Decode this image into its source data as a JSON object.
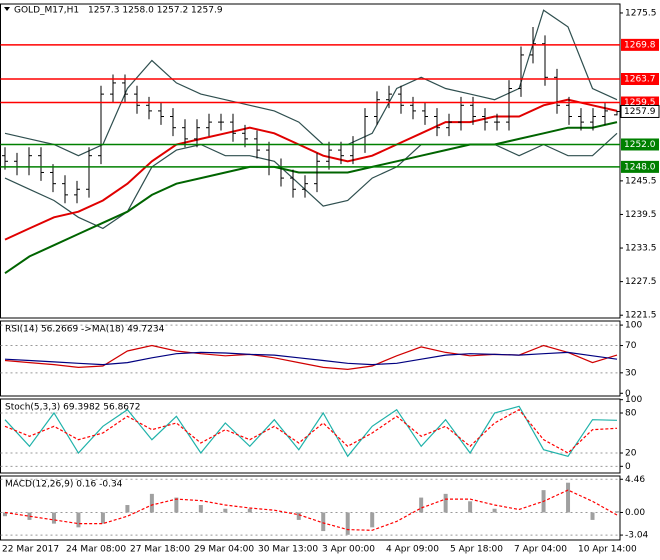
{
  "chart_data": [
    {
      "type": "ohlc",
      "title": "GOLD_M17,H1",
      "quote": "1257.3 1258.0 1257.2 1257.9",
      "color": "#000000",
      "open": [
        1250,
        1249,
        1248,
        1250,
        1247,
        1245,
        1243,
        1244,
        1250,
        1261,
        1263,
        1261,
        1259,
        1258,
        1257,
        1255,
        1253,
        1255,
        1256,
        1256,
        1254,
        1253,
        1251,
        1248,
        1246,
        1244,
        1245,
        1249,
        1251,
        1250,
        1252,
        1257,
        1260,
        1261,
        1259,
        1258,
        1257,
        1255,
        1256,
        1259,
        1257,
        1256,
        1256,
        1262,
        1268,
        1270,
        1264,
        1259,
        1257,
        1256,
        1257,
        1257.3
      ],
      "high": [
        1251.5,
        1250.5,
        1251.5,
        1251.5,
        1248.5,
        1246.5,
        1245.5,
        1251.5,
        1262.5,
        1264.5,
        1264.5,
        1262.5,
        1260.5,
        1259.5,
        1258.5,
        1256.5,
        1256.5,
        1257.5,
        1257.5,
        1257.5,
        1255.5,
        1254.5,
        1252.5,
        1249.5,
        1247.5,
        1246.5,
        1250.5,
        1252.5,
        1252.5,
        1253.5,
        1258.5,
        1261.5,
        1262.5,
        1262.5,
        1260.5,
        1259.5,
        1258.5,
        1257.5,
        1260.5,
        1260.5,
        1258.5,
        1257.5,
        1263.5,
        1269.5,
        1273,
        1271.5,
        1265.5,
        1260.5,
        1258.5,
        1258.5,
        1259.5,
        1258.0
      ],
      "low": [
        1247.5,
        1246.5,
        1246.5,
        1245.5,
        1243.5,
        1241.5,
        1241.5,
        1242.5,
        1248.5,
        1259.5,
        1259.5,
        1257.5,
        1256.5,
        1255.5,
        1253.5,
        1251.5,
        1251.5,
        1253.5,
        1254.5,
        1252.5,
        1251.5,
        1249.5,
        1246.5,
        1244.5,
        1242.5,
        1242.5,
        1243.5,
        1247.5,
        1248.5,
        1248.5,
        1250.5,
        1255.5,
        1258.5,
        1257.5,
        1256.5,
        1255.5,
        1253.5,
        1253.5,
        1254.5,
        1255.5,
        1254.5,
        1254.5,
        1254.5,
        1260.5,
        1266.5,
        1262.5,
        1257.5,
        1255.5,
        1254.5,
        1254.5,
        1255.5,
        1257.2
      ],
      "close": [
        1249,
        1248,
        1250,
        1247,
        1245,
        1243,
        1244,
        1250,
        1261,
        1263,
        1261,
        1259,
        1258,
        1257,
        1255,
        1253,
        1255,
        1256,
        1256,
        1254,
        1253,
        1251,
        1248,
        1246,
        1244,
        1245,
        1249,
        1251,
        1250,
        1252,
        1257,
        1260,
        1261,
        1259,
        1258,
        1257,
        1255,
        1256,
        1259,
        1257,
        1256,
        1256,
        1262,
        1268,
        1270,
        1264,
        1259,
        1257,
        1256,
        1257,
        1258,
        1257.9
      ],
      "series": [
        {
          "color": "#2f4f4f",
          "values": [
            1254,
            1253,
            1252,
            1250,
            1252,
            1262,
            1267,
            1263,
            1261,
            1260,
            1259,
            1258,
            1256,
            1252,
            1252,
            1254,
            1262,
            1264,
            1262,
            1261,
            1260,
            1262,
            1276,
            1273,
            1262,
            1260
          ]
        },
        {
          "color": "#2f4f4f",
          "values": [
            1246,
            1244,
            1242,
            1239,
            1237,
            1240,
            1248,
            1251,
            1252,
            1250,
            1250,
            1249,
            1245,
            1241,
            1242,
            1246,
            1248,
            1252,
            1252,
            1252,
            1252,
            1250,
            1252,
            1250,
            1250,
            1254
          ]
        },
        {
          "color": "#e00000",
          "values": [
            1235,
            1237,
            1239,
            1240,
            1242,
            1245,
            1249,
            1252,
            1253,
            1254,
            1255,
            1254,
            1252,
            1250,
            1249,
            1250,
            1252,
            1254,
            1256,
            1256,
            1257,
            1257,
            1259,
            1260,
            1259,
            1258
          ]
        },
        {
          "color": "#006400",
          "values": [
            1229,
            1232,
            1234,
            1236,
            1238,
            1240,
            1243,
            1245,
            1246,
            1247,
            1248,
            1248,
            1247,
            1247,
            1247,
            1248,
            1249,
            1250,
            1251,
            1252,
            1252,
            1253,
            1254,
            1255,
            1255,
            1256
          ]
        }
      ],
      "levels": [
        {
          "value": 1269.8,
          "label": "1269.8",
          "color": "#ff0000"
        },
        {
          "value": 1263.7,
          "label": "1263.7",
          "color": "#ff0000"
        },
        {
          "value": 1259.5,
          "label": "1259.5",
          "color": "#ff0000"
        },
        {
          "value": 1252,
          "label": "1252.0",
          "color": "#008000"
        },
        {
          "value": 1248,
          "label": "1248.0",
          "color": "#008000"
        }
      ],
      "current": 1257.9,
      "ylim": [
        1221,
        1277.1
      ],
      "yticks": [
        1275.5,
        1245.5,
        1239.5,
        1233.5,
        1227.5,
        1221.5
      ],
      "x_labels": [
        "22 Mar 2017",
        "24 Mar 08:00",
        "27 Mar 18:00",
        "29 Mar 04:00",
        "30 Mar 13:00",
        "3 Apr 00:00",
        "4 Apr 09:00",
        "5 Apr 18:00",
        "7 Apr 04:00",
        "10 Apr 14:00"
      ]
    },
    {
      "type": "line",
      "title": "RSI(14) 56.2669 ->MA(18) 49.7234",
      "ylim": [
        -4,
        106
      ],
      "yticks": [
        100,
        70,
        30,
        0
      ],
      "series": [
        {
          "color": "#d00000",
          "values": [
            48,
            45,
            42,
            38,
            40,
            62,
            70,
            62,
            58,
            55,
            57,
            52,
            45,
            38,
            35,
            40,
            55,
            68,
            60,
            55,
            57,
            56,
            70,
            60,
            45,
            56
          ]
        },
        {
          "color": "#000080",
          "values": [
            50,
            48,
            46,
            44,
            42,
            45,
            52,
            58,
            60,
            59,
            57,
            56,
            52,
            48,
            44,
            42,
            44,
            50,
            56,
            58,
            57,
            56,
            58,
            60,
            55,
            50
          ]
        }
      ]
    },
    {
      "type": "line",
      "title": "Stoch(5,3,3) 69.3982 56.8672",
      "ylim": [
        -10,
        101
      ],
      "yticks": [
        100,
        80,
        20,
        0
      ],
      "series": [
        {
          "color": "#20b2aa",
          "values": [
            70,
            30,
            80,
            20,
            60,
            85,
            40,
            75,
            20,
            65,
            30,
            70,
            25,
            80,
            15,
            60,
            85,
            30,
            70,
            20,
            80,
            90,
            25,
            15,
            70,
            69
          ]
        },
        {
          "color": "#ff0000",
          "dashed": true,
          "values": [
            60,
            45,
            60,
            40,
            50,
            75,
            55,
            65,
            35,
            55,
            40,
            60,
            35,
            65,
            30,
            50,
            75,
            45,
            60,
            30,
            65,
            85,
            40,
            20,
            55,
            57
          ]
        }
      ]
    },
    {
      "type": "macd",
      "title": "MACD(12,26,9) 0.16 -0.34",
      "ylim": [
        -3.7,
        4.9
      ],
      "yticks": [
        4.46,
        {
          "value": 0,
          "label": "0.00"
        },
        -3.04
      ],
      "bar_color": "#a0a0a0",
      "values": [
        -0.5,
        -1,
        -1.5,
        -2,
        -1.5,
        1,
        2.5,
        2,
        1,
        0.5,
        0.5,
        0,
        -1,
        -2.5,
        -3,
        -2,
        0,
        2,
        2.5,
        1.5,
        0.5,
        0,
        3,
        4,
        -1,
        0.16
      ],
      "series": [
        {
          "color": "#ff0000",
          "dashed": true,
          "values": [
            0,
            -0.5,
            -1,
            -1.5,
            -1.5,
            -0.5,
            1,
            1.8,
            1.6,
            1,
            0.6,
            0.3,
            -0.3,
            -1.4,
            -2.3,
            -2.4,
            -1.2,
            0.6,
            1.8,
            1.8,
            1,
            0.4,
            1.5,
            3,
            1.5,
            -0.34
          ]
        }
      ]
    }
  ]
}
